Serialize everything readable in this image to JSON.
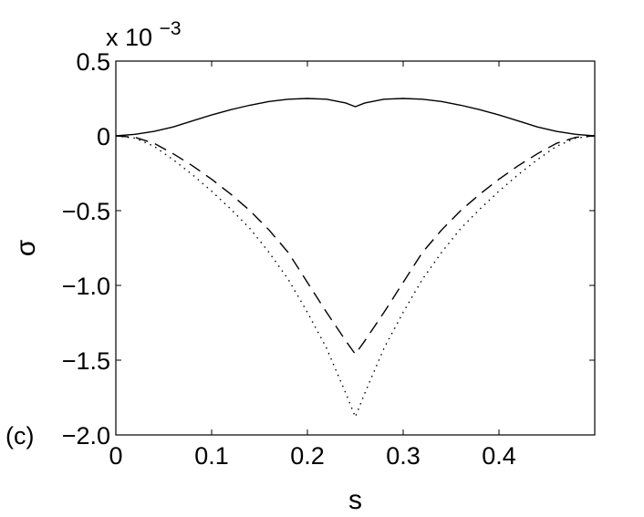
{
  "chart_data": {
    "type": "line",
    "title": "",
    "xlabel": "s",
    "ylabel": "σ",
    "panel_label": "(c)",
    "y_multiplier_text": {
      "prefix": "x 10",
      "exponent": "−3"
    },
    "xlim": [
      0,
      0.5
    ],
    "ylim": [
      -2.0,
      0.5
    ],
    "x_ticks": [
      0,
      0.1,
      0.2,
      0.3,
      0.4
    ],
    "x_tick_labels": [
      "0",
      "0.1",
      "0.2",
      "0.3",
      "0.4"
    ],
    "y_ticks": [
      0.5,
      0,
      -0.5,
      -1.0,
      -1.5,
      -2.0
    ],
    "y_tick_labels": [
      "0.5",
      "0",
      "−0.5",
      "−1.0",
      "−1.5",
      "−2.0"
    ],
    "grid": false,
    "legend": "none",
    "series": [
      {
        "style": "solid",
        "x": [
          0,
          0.02,
          0.04,
          0.06,
          0.08,
          0.1,
          0.12,
          0.14,
          0.16,
          0.18,
          0.2,
          0.22,
          0.24,
          0.25,
          0.26,
          0.28,
          0.3,
          0.32,
          0.34,
          0.36,
          0.38,
          0.4,
          0.42,
          0.44,
          0.46,
          0.48,
          0.5
        ],
        "y": [
          0,
          0.01,
          0.03,
          0.06,
          0.1,
          0.14,
          0.175,
          0.205,
          0.23,
          0.245,
          0.25,
          0.245,
          0.22,
          0.195,
          0.22,
          0.245,
          0.25,
          0.245,
          0.23,
          0.205,
          0.175,
          0.14,
          0.1,
          0.06,
          0.03,
          0.01,
          0
        ]
      },
      {
        "style": "dashed",
        "x": [
          0,
          0.02,
          0.04,
          0.06,
          0.08,
          0.1,
          0.12,
          0.14,
          0.16,
          0.18,
          0.2,
          0.22,
          0.24,
          0.25,
          0.26,
          0.28,
          0.3,
          0.32,
          0.34,
          0.36,
          0.38,
          0.4,
          0.42,
          0.44,
          0.46,
          0.48,
          0.5
        ],
        "y": [
          0,
          -0.01,
          -0.05,
          -0.12,
          -0.2,
          -0.29,
          -0.39,
          -0.5,
          -0.63,
          -0.78,
          -0.98,
          -1.18,
          -1.37,
          -1.46,
          -1.37,
          -1.18,
          -0.98,
          -0.78,
          -0.63,
          -0.5,
          -0.39,
          -0.29,
          -0.2,
          -0.12,
          -0.05,
          -0.01,
          0
        ]
      },
      {
        "style": "dotted",
        "x": [
          0,
          0.02,
          0.04,
          0.06,
          0.08,
          0.1,
          0.12,
          0.14,
          0.16,
          0.18,
          0.2,
          0.22,
          0.24,
          0.25,
          0.26,
          0.28,
          0.3,
          0.32,
          0.34,
          0.36,
          0.38,
          0.4,
          0.42,
          0.44,
          0.46,
          0.48,
          0.5
        ],
        "y": [
          0,
          -0.015,
          -0.07,
          -0.16,
          -0.26,
          -0.37,
          -0.49,
          -0.62,
          -0.78,
          -0.96,
          -1.18,
          -1.42,
          -1.72,
          -1.88,
          -1.72,
          -1.42,
          -1.18,
          -0.96,
          -0.78,
          -0.62,
          -0.49,
          -0.37,
          -0.26,
          -0.16,
          -0.07,
          -0.015,
          0
        ]
      }
    ]
  }
}
